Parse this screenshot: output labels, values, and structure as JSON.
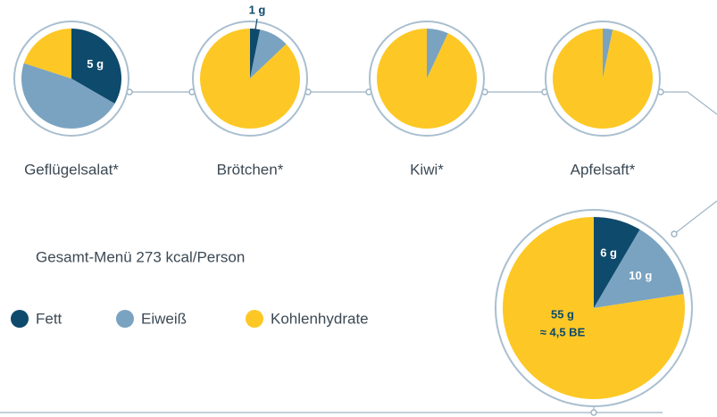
{
  "chart_data": [
    {
      "type": "pie",
      "title": "Geflügelsalat*",
      "values": [
        5,
        7,
        3
      ],
      "value_labels": [
        "5 g",
        null,
        null
      ]
    },
    {
      "type": "pie",
      "title": "Brötchen*",
      "values": [
        1,
        3,
        27
      ],
      "value_labels": [
        "1 g",
        null,
        null
      ]
    },
    {
      "type": "pie",
      "title": "Kiwi*",
      "values": [
        0,
        0.75,
        10
      ],
      "value_labels": [
        null,
        null,
        null
      ]
    },
    {
      "type": "pie",
      "title": "Apfelsaft*",
      "values": [
        0,
        0.5,
        15
      ],
      "value_labels": [
        null,
        null,
        null
      ]
    },
    {
      "type": "pie",
      "title": "Gesamt-Menü 273 kcal/Person",
      "values": [
        6,
        10,
        55
      ],
      "value_labels": [
        "6 g",
        "10 g",
        "55 g"
      ],
      "annotation": "≈ 4,5 BE"
    }
  ],
  "legend": {
    "categories": [
      "Fett",
      "Eiweiß",
      "Kohlenhydrate"
    ],
    "colors": [
      "#0e4a6c",
      "#7aa3c1",
      "#fdc825"
    ]
  }
}
